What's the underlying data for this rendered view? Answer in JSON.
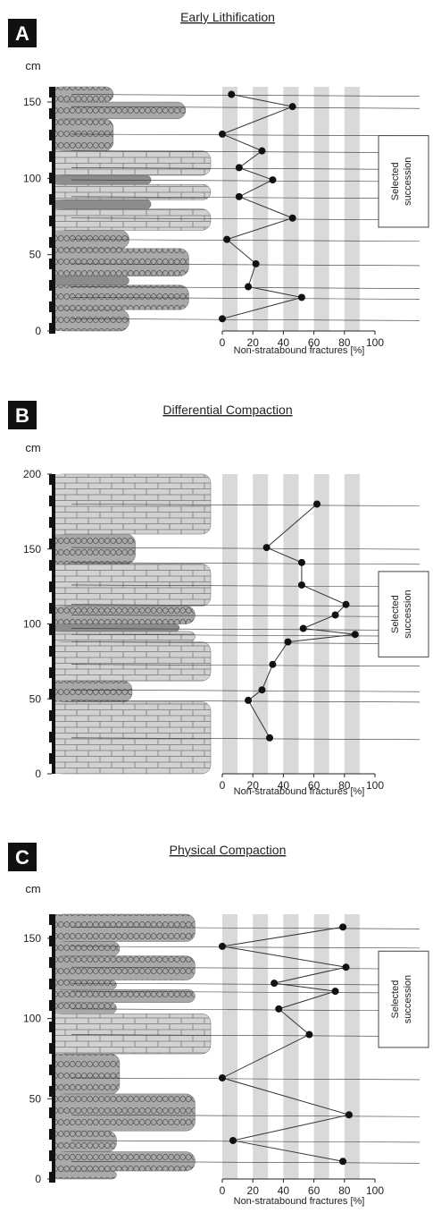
{
  "colors": {
    "limestone_fill": "#d2d2d2",
    "marl_fill": "#a9a9a9",
    "dark_band": "#8c8c8c",
    "stripe": "#d9d9d9",
    "line": "#333333",
    "point": "#111111",
    "badge": "#111111"
  },
  "chart_data": [
    {
      "type": "scatter",
      "panel": "A",
      "title": "Early Lithification",
      "ylabel": "cm",
      "xlabel": "Non-stratabound fractures [%]",
      "ylim": [
        0,
        160
      ],
      "xlim": [
        0,
        100
      ],
      "yticks": [
        "0",
        "50",
        "100",
        "150"
      ],
      "xticks": [
        "0",
        "20",
        "40",
        "60",
        "80",
        "100"
      ],
      "selected_label": [
        "Selected",
        "succession"
      ],
      "selected_range": [
        68,
        128
      ],
      "points": [
        {
          "x": 6,
          "y": 155
        },
        {
          "x": 46,
          "y": 147
        },
        {
          "x": 0,
          "y": 129
        },
        {
          "x": 26,
          "y": 118
        },
        {
          "x": 11,
          "y": 107
        },
        {
          "x": 33,
          "y": 99
        },
        {
          "x": 11,
          "y": 88
        },
        {
          "x": 46,
          "y": 74
        },
        {
          "x": 3,
          "y": 60
        },
        {
          "x": 22,
          "y": 44
        },
        {
          "x": 17,
          "y": 29
        },
        {
          "x": 52,
          "y": 22
        },
        {
          "x": 0,
          "y": 8
        }
      ],
      "beds": [
        {
          "from": 0,
          "to": 14,
          "lith": "marl",
          "w": 0.48
        },
        {
          "from": 14,
          "to": 30,
          "lith": "marl",
          "w": 0.86
        },
        {
          "from": 30,
          "to": 36,
          "lith": "dark",
          "w": 0.48
        },
        {
          "from": 36,
          "to": 54,
          "lith": "marl",
          "w": 0.86
        },
        {
          "from": 54,
          "to": 66,
          "lith": "marl",
          "w": 0.48
        },
        {
          "from": 66,
          "to": 80,
          "lith": "limestone",
          "w": 1.0
        },
        {
          "from": 80,
          "to": 86,
          "lith": "dark",
          "w": 0.62
        },
        {
          "from": 86,
          "to": 96,
          "lith": "limestone",
          "w": 1.0
        },
        {
          "from": 96,
          "to": 102,
          "lith": "dark",
          "w": 0.62
        },
        {
          "from": 102,
          "to": 118,
          "lith": "limestone",
          "w": 1.0
        },
        {
          "from": 118,
          "to": 139,
          "lith": "marl",
          "w": 0.38
        },
        {
          "from": 139,
          "to": 150,
          "lith": "marl",
          "w": 0.84
        },
        {
          "from": 150,
          "to": 160,
          "lith": "marl",
          "w": 0.38
        }
      ]
    },
    {
      "type": "scatter",
      "panel": "B",
      "title": "Differential Compaction",
      "ylabel": "cm",
      "xlabel": "Non-stratabound fractures [%]",
      "ylim": [
        0,
        200
      ],
      "xlim": [
        0,
        100
      ],
      "yticks": [
        "0",
        "50",
        "100",
        "150",
        "200"
      ],
      "xticks": [
        "0",
        "20",
        "40",
        "60",
        "80",
        "100"
      ],
      "selected_label": [
        "Selected",
        "succession"
      ],
      "selected_range": [
        78,
        135
      ],
      "points": [
        {
          "x": 62,
          "y": 180
        },
        {
          "x": 29,
          "y": 151
        },
        {
          "x": 52,
          "y": 141
        },
        {
          "x": 52,
          "y": 126
        },
        {
          "x": 81,
          "y": 113
        },
        {
          "x": 74,
          "y": 106
        },
        {
          "x": 53,
          "y": 97
        },
        {
          "x": 87,
          "y": 93
        },
        {
          "x": 43,
          "y": 88
        },
        {
          "x": 33,
          "y": 73
        },
        {
          "x": 26,
          "y": 56
        },
        {
          "x": 17,
          "y": 49
        },
        {
          "x": 31,
          "y": 24
        }
      ],
      "beds": [
        {
          "from": 0,
          "to": 48,
          "lith": "limestone",
          "w": 1.0
        },
        {
          "from": 48,
          "to": 62,
          "lith": "marl",
          "w": 0.5
        },
        {
          "from": 62,
          "to": 88,
          "lith": "limestone",
          "w": 1.0
        },
        {
          "from": 88,
          "to": 95,
          "lith": "limestone",
          "w": 0.9
        },
        {
          "from": 95,
          "to": 100,
          "lith": "dark",
          "w": 0.8
        },
        {
          "from": 100,
          "to": 112,
          "lith": "marl",
          "w": 0.9
        },
        {
          "from": 112,
          "to": 140,
          "lith": "limestone",
          "w": 1.0
        },
        {
          "from": 140,
          "to": 160,
          "lith": "marl",
          "w": 0.52
        },
        {
          "from": 160,
          "to": 200,
          "lith": "limestone",
          "w": 1.0
        }
      ]
    },
    {
      "type": "scatter",
      "panel": "C",
      "title": "Physical  Compaction",
      "ylabel": "cm",
      "xlabel": "Non-stratabound fractures [%]",
      "ylim": [
        0,
        165
      ],
      "xlim": [
        0,
        100
      ],
      "yticks": [
        "0",
        "50",
        "100",
        "150"
      ],
      "xticks": [
        "0",
        "20",
        "40",
        "60",
        "80",
        "100"
      ],
      "selected_label": [
        "Selected",
        "succession"
      ],
      "selected_range": [
        82,
        142
      ],
      "points": [
        {
          "x": 79,
          "y": 157
        },
        {
          "x": 0,
          "y": 145
        },
        {
          "x": 81,
          "y": 132
        },
        {
          "x": 34,
          "y": 122
        },
        {
          "x": 74,
          "y": 117
        },
        {
          "x": 37,
          "y": 106
        },
        {
          "x": 57,
          "y": 90
        },
        {
          "x": 0,
          "y": 63
        },
        {
          "x": 83,
          "y": 40
        },
        {
          "x": 7,
          "y": 24
        },
        {
          "x": 79,
          "y": 11
        }
      ],
      "beds": [
        {
          "from": 0,
          "to": 5,
          "lith": "marl",
          "w": 0.4
        },
        {
          "from": 5,
          "to": 17,
          "lith": "marl",
          "w": 0.9
        },
        {
          "from": 17,
          "to": 30,
          "lith": "marl",
          "w": 0.4
        },
        {
          "from": 30,
          "to": 53,
          "lith": "marl",
          "w": 0.9
        },
        {
          "from": 53,
          "to": 78,
          "lith": "marl",
          "w": 0.42
        },
        {
          "from": 78,
          "to": 103,
          "lith": "limestone",
          "w": 1.0
        },
        {
          "from": 103,
          "to": 110,
          "lith": "marl",
          "w": 0.4
        },
        {
          "from": 110,
          "to": 118,
          "lith": "marl",
          "w": 0.9
        },
        {
          "from": 118,
          "to": 124,
          "lith": "marl",
          "w": 0.4
        },
        {
          "from": 124,
          "to": 139,
          "lith": "marl",
          "w": 0.9
        },
        {
          "from": 139,
          "to": 148,
          "lith": "marl",
          "w": 0.42
        },
        {
          "from": 148,
          "to": 165,
          "lith": "marl",
          "w": 0.9
        }
      ]
    }
  ]
}
